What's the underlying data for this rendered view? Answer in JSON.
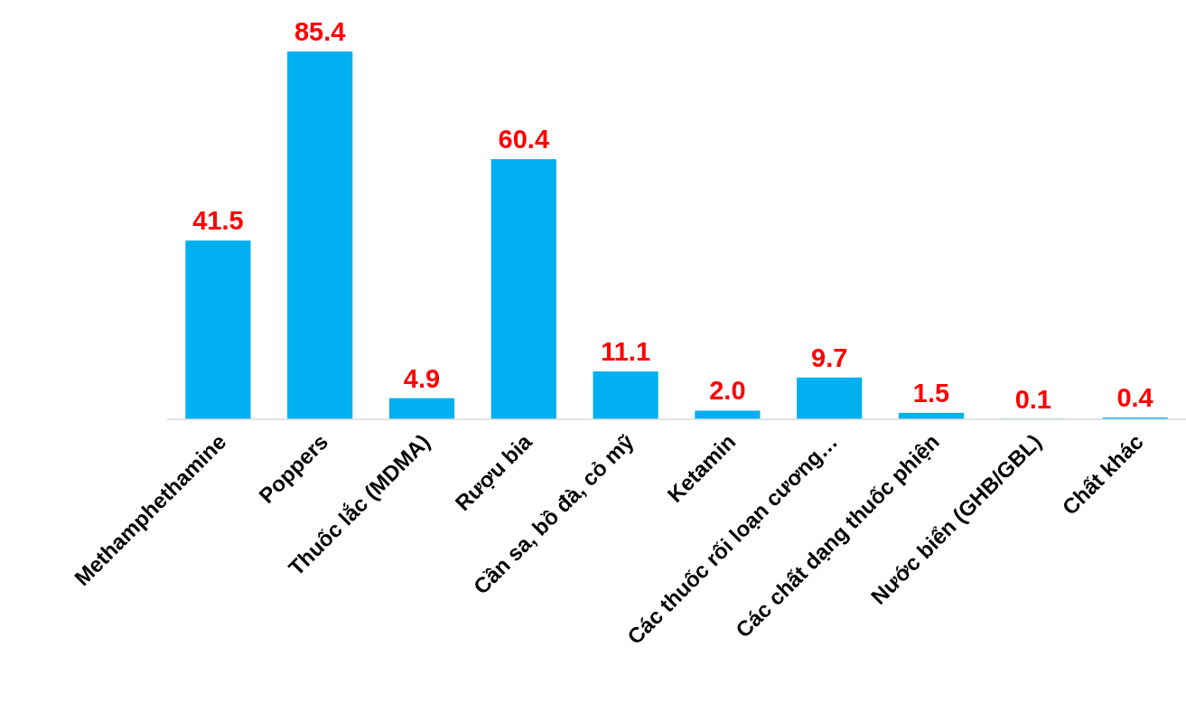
{
  "chart_data": {
    "type": "bar",
    "categories": [
      "Methamphethamine",
      "Poppers",
      "Thuốc lắc (MDMA)",
      "Rượu bia",
      "Cần sa, bồ đà, cỏ mỹ",
      "Ketamin",
      "Các thuốc rối loạn cương…",
      "Các chất dạng thuốc phiện",
      "Nước biển (GHB/GBL)",
      "Chất khác"
    ],
    "values": [
      41.5,
      85.4,
      4.9,
      60.4,
      11.1,
      2.0,
      9.7,
      1.5,
      0.1,
      0.4
    ],
    "value_labels": [
      "41.5",
      "85.4",
      "4.9",
      "60.4",
      "11.1",
      "2.0",
      "9.7",
      "1.5",
      "0.1",
      "0.4"
    ],
    "color": "#00b0f0"
  }
}
